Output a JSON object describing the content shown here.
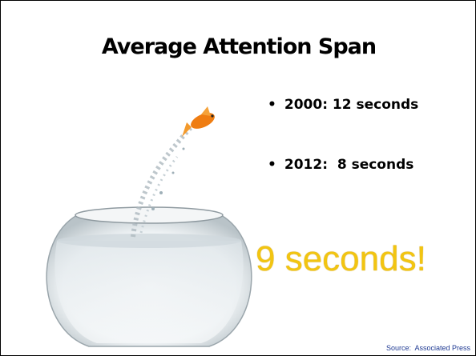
{
  "header": {
    "title": "Average Attention Span"
  },
  "bullets": [
    "2000: 12 seconds",
    "2012:  8 seconds"
  ],
  "highlight": "9 seconds!",
  "source": "Source:  Associated Press"
}
